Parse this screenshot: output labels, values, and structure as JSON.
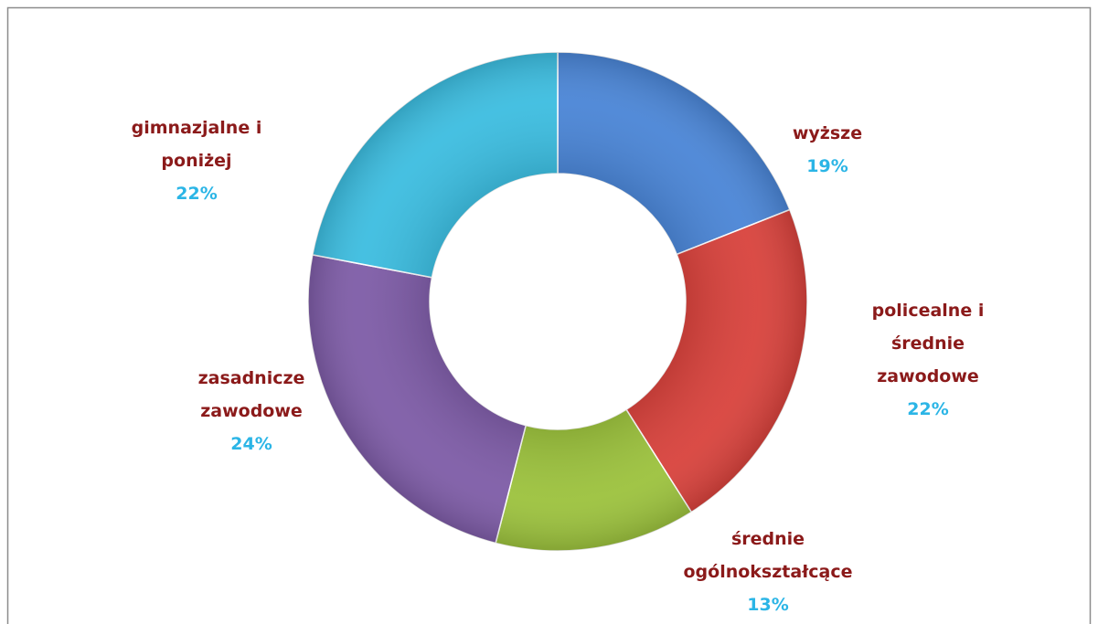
{
  "chart_data": {
    "type": "donut",
    "categories": [
      "wyższe",
      "policealne i średnie zawodowe",
      "średnie ogólnokształcące",
      "zasadnicze zawodowe",
      "gimnazjalne i poniżej"
    ],
    "values": [
      19,
      22,
      13,
      24,
      22
    ],
    "value_labels": [
      "19%",
      "22%",
      "13%",
      "24%",
      "22%"
    ],
    "colors": [
      "#4a85d6",
      "#d8423c",
      "#9cc23d",
      "#7e5ca7",
      "#3cbde0"
    ]
  }
}
